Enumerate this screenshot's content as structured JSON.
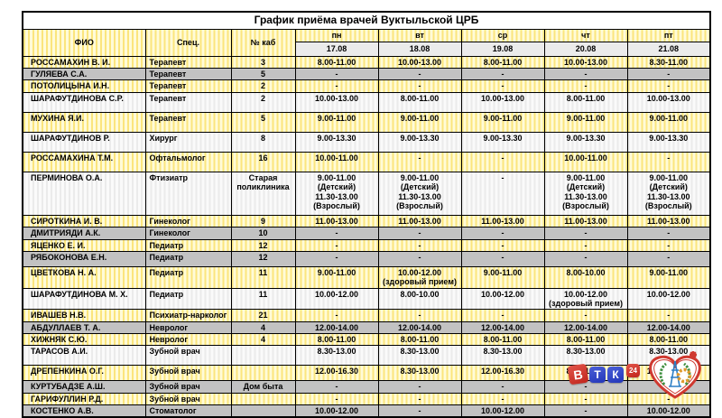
{
  "title": "График приёма врачей Вуктыльской ЦРБ",
  "columns": {
    "fio": "ФИО",
    "spec": "Спец.",
    "kab": "№ каб"
  },
  "days": [
    {
      "label": "пн",
      "date": "17.08"
    },
    {
      "label": "вт",
      "date": "18.08"
    },
    {
      "label": "ср",
      "date": "19.08"
    },
    {
      "label": "чт",
      "date": "20.08"
    },
    {
      "label": "пт",
      "date": "21.08"
    }
  ],
  "rows": [
    {
      "fio": "РОССАМАХИН В. И.",
      "spec": "Терапевт",
      "kab": "3",
      "times": [
        "8.00-11.00",
        "10.00-13.00",
        "8.00-11.00",
        "10.00-13.00",
        "8.30-11.00"
      ],
      "bg": "y",
      "size": "s"
    },
    {
      "fio": "ГУЛЯЕВА С.А.",
      "spec": "Терапевт",
      "kab": "5",
      "times": [
        "-",
        "-",
        "-",
        "-",
        "-"
      ],
      "bg": "g",
      "size": "xs"
    },
    {
      "fio": "ПОТОЛИЦЫНА И.Н.",
      "spec": "Терапевт",
      "kab": "2",
      "times": [
        "-",
        "-",
        "-",
        "-",
        "-"
      ],
      "bg": "y",
      "size": "s"
    },
    {
      "fio": "ШАРАФУТДИНОВА С.Р.",
      "spec": "Терапевт",
      "kab": "2",
      "times": [
        "10.00-13.00",
        "8.00-11.00",
        "10.00-13.00",
        "8.00-11.00",
        "10.00-13.00"
      ],
      "bg": "w",
      "size": "m"
    },
    {
      "fio": "МУХИНА Я.И.",
      "spec": "Терапевт",
      "kab": "5",
      "times": [
        "9.00-11.00",
        "9.00-11.00",
        "9.00-11.00",
        "9.00-11.00",
        "9.00-11.00"
      ],
      "bg": "y",
      "size": "m"
    },
    {
      "fio": "ШАРАФУТДИНОВ Р.",
      "spec": "Хирург",
      "kab": "8",
      "times": [
        "9.00-13.30",
        "9.00-13.30",
        "9.00-13.30",
        "9.00-13.30",
        "9.00-13.30"
      ],
      "bg": "w",
      "size": "m"
    },
    {
      "fio": "РОССАМАХИНА Т.М.",
      "spec": "Офтальмолог",
      "kab": "16",
      "times": [
        "10.00-11.00",
        "-",
        "-",
        "10.00-11.00",
        "-"
      ],
      "bg": "y",
      "size": "m"
    },
    {
      "fio": "ПЕРМИНОВА О.А.",
      "spec": "Фтизиатр",
      "kab": "Старая\nполиклиника",
      "times": [
        "9.00-11.00\n(Детский)\n11.30-13.00\n(Взрослый)",
        "9.00-11.00\n(Детский)\n11.30-13.00\n(Взрослый)",
        "-",
        "9.00-11.00\n(Детский)\n11.30-13.00\n(Взрослый)",
        "9.00-11.00\n(Детский)\n11.30-13.00\n(Взрослый)"
      ],
      "bg": "w",
      "size": "xl"
    },
    {
      "fio": "СИРОТКИНА И. В.",
      "spec": "Гинеколог",
      "kab": "9",
      "times": [
        "11.00-13.00",
        "11.00-13.00",
        "11.00-13.00",
        "11.00-13.00",
        "11.00-13.00"
      ],
      "bg": "y",
      "size": "s"
    },
    {
      "fio": "ДМИТРИЯДИ А.К.",
      "spec": "Гинеколог",
      "kab": "10",
      "times": [
        "-",
        "-",
        "-",
        "-",
        "-"
      ],
      "bg": "g",
      "size": "xs"
    },
    {
      "fio": "ЯЦЕНКО Е. И.",
      "spec": "Педиатр",
      "kab": "12",
      "times": [
        "-",
        "-",
        "-",
        "-",
        "-"
      ],
      "bg": "y",
      "size": "s"
    },
    {
      "fio": "РЯБОКОНОВА Е.Н.",
      "spec": "Педиатр",
      "kab": "12",
      "times": [
        "-",
        "-",
        "-",
        "-",
        "-"
      ],
      "bg": "g",
      "size": "ml"
    },
    {
      "fio": "ЦВЕТКОВА Н. А.",
      "spec": "Педиатр",
      "kab": "11",
      "times": [
        "9.00-11.00",
        "10.00-12.00\n(здоровый прием)",
        "9.00-11.00",
        "8.00-10.00",
        "9.00-11.00"
      ],
      "bg": "y",
      "size": "m"
    },
    {
      "fio": "ШАРАФУТДИНОВА М. Х.",
      "spec": "Педиатр",
      "kab": "11",
      "times": [
        "10.00-12.00",
        "8.00-10.00",
        "10.00-12.00",
        "10.00-12.00\n(здоровый прием)",
        "10.00-12.00"
      ],
      "bg": "w",
      "size": "m"
    },
    {
      "fio": "ИВАШЕВ Н.В.",
      "spec": "Психиатр-нарколог",
      "kab": "21",
      "times": [
        "-",
        "-",
        "-",
        "-",
        "-"
      ],
      "bg": "y",
      "size": "s"
    },
    {
      "fio": "АБДУЛЛАЕВ Т. А.",
      "spec": "Невролог",
      "kab": "4",
      "times": [
        "12.00-14.00",
        "12.00-14.00",
        "12.00-14.00",
        "12.00-14.00",
        "12.00-14.00"
      ],
      "bg": "g",
      "size": "xs"
    },
    {
      "fio": "ХИЖНЯК С.Ю.",
      "spec": "Невролог",
      "kab": "4",
      "times": [
        "8.00-11.00",
        "8.00-11.00",
        "8.00-11.00",
        "8.00-11.00",
        "8.00-11.00"
      ],
      "bg": "y",
      "size": "s"
    },
    {
      "fio": "ТАРАСОВ А.И.",
      "spec": "Зубной врач",
      "kab": "",
      "times": [
        "8.30-13.00",
        "8.30-13.00",
        "8.30-13.00",
        "8.30-13.00",
        "8.30-13.00"
      ],
      "bg": "w",
      "size": "m"
    },
    {
      "fio": "ДРЕПЕНКИНА О.Г.",
      "spec": "Зубной врач",
      "kab": "",
      "times": [
        "12.00-16.30",
        "8.30-13.00",
        "12.00-16.30",
        "8.30-13.00",
        "12.00-16.30"
      ],
      "bg": "y",
      "size": "ml"
    },
    {
      "fio": "КУРТУБАДЗЕ А.Ш.",
      "spec": "Зубной врач",
      "kab": "Дом быта",
      "times": [
        "-",
        "-",
        "-",
        "-",
        "-"
      ],
      "bg": "g",
      "size": "xs"
    },
    {
      "fio": "ГАРИФУЛЛИН Р.Д.",
      "spec": "Зубной врач",
      "kab": "",
      "times": [
        "-",
        "-",
        "-",
        "-",
        "-"
      ],
      "bg": "y",
      "size": "xs"
    },
    {
      "fio": "КОСТЕНКО А.В.",
      "spec": "Стоматолог",
      "kab": "",
      "times": [
        "10.00-12.00",
        "-",
        "10.00-12.00",
        "-",
        "10.00-12.00"
      ],
      "bg": "g",
      "size": "xs"
    }
  ],
  "logos": {
    "vtk": {
      "letters": [
        "В",
        "Т",
        "К"
      ],
      "badge": "24"
    }
  },
  "colors": {
    "row_yellow": "#fffbd8",
    "row_yellow_stripe": "#fbe57d",
    "row_gray": "#c2c2c2",
    "row_white": "#fafafa",
    "date_header_bg": "#ebebeb",
    "border": "#000000",
    "vtk_red": "#c0251c",
    "vtk_blue": "#2336b8",
    "heart_red": "#cf3930",
    "wreath_green": "#3f8f3f",
    "derrick_blue": "#2d7fc5",
    "gear_orange": "#e09a2d"
  }
}
